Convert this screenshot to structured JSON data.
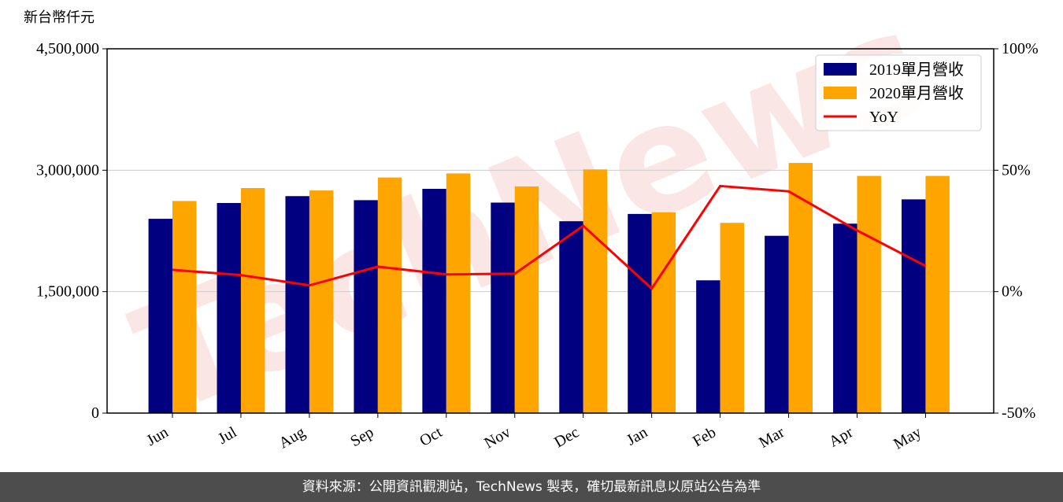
{
  "chart_data": {
    "type": "bar",
    "y_label": "新台幣仟元",
    "watermark": "TechNews",
    "categories": [
      "Jun",
      "Jul",
      "Aug",
      "Sep",
      "Oct",
      "Nov",
      "Dec",
      "Jan",
      "Feb",
      "Mar",
      "Apr",
      "May"
    ],
    "series": [
      {
        "name": "2019單月營收",
        "color": "#000080",
        "values": [
          2400000,
          2595000,
          2680000,
          2630000,
          2770000,
          2600000,
          2370000,
          2460000,
          1640000,
          2190000,
          2340000,
          2640000
        ]
      },
      {
        "name": "2020單月營收",
        "color": "#ffa500",
        "values": [
          2620000,
          2780000,
          2750000,
          2910000,
          2960000,
          2800000,
          3010000,
          2480000,
          2350000,
          3090000,
          2930000,
          2930000
        ]
      },
      {
        "name": "YoY",
        "color": "#ff0000",
        "axis": "y2",
        "type": "line",
        "values": [
          9.0,
          6.8,
          2.6,
          10.3,
          7.1,
          7.4,
          27.1,
          1.3,
          43.5,
          41.3,
          25.2,
          10.6
        ]
      }
    ],
    "ylim": [
      0,
      4500000
    ],
    "yticks": [
      0,
      {
        "value": 1500000,
        "label": "1,500,000"
      },
      {
        "value": 3000000,
        "label": "3,000,000"
      },
      {
        "value": 4500000,
        "label": "4,500,000"
      }
    ],
    "y2lim": [
      -50,
      100
    ],
    "y2ticks": [
      {
        "value": -50,
        "label": "-50%"
      },
      {
        "value": 0,
        "label": "0%"
      },
      {
        "value": 50,
        "label": "50%"
      },
      {
        "value": 100,
        "label": "100%"
      }
    ],
    "grid": true,
    "legend": "upper right"
  },
  "footer": "資料來源：公開資訊觀測站，TechNews 製表，確切最新訊息以原站公告為準"
}
